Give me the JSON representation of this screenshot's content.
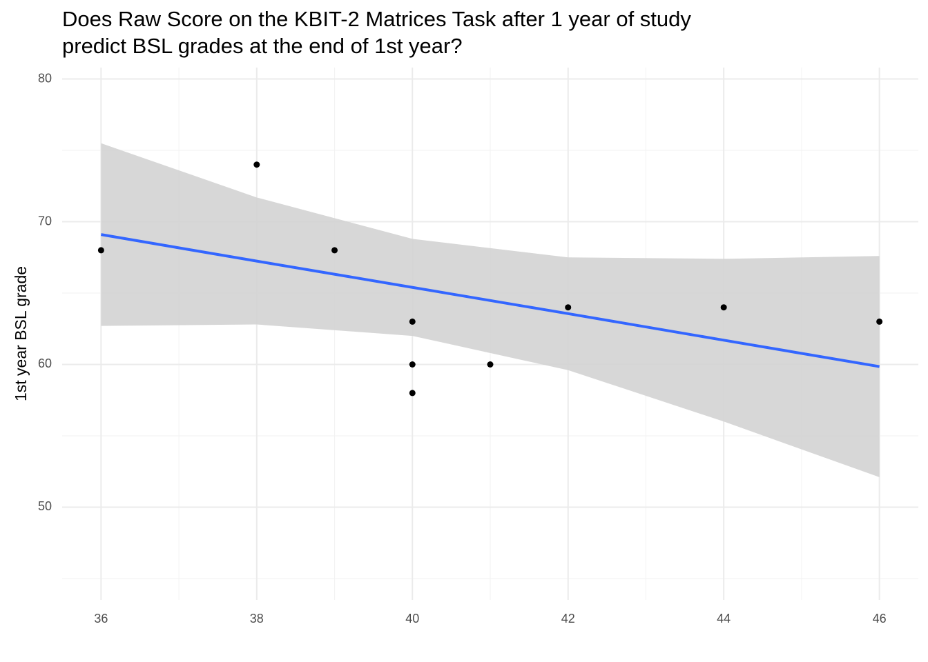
{
  "chart_data": {
    "type": "scatter",
    "title": [
      "Does Raw Score on the KBIT-2 Matrices Task after 1 year of study",
      "predict BSL grades at the end of 1st year?"
    ],
    "y_label": "1st year BSL grade",
    "x": [
      36,
      38,
      39,
      40,
      40,
      40,
      41,
      42,
      44,
      46
    ],
    "series": [
      {
        "color": "#000000",
        "values": [
          68,
          74,
          68,
          63,
          60,
          58,
          60,
          64,
          64,
          63
        ]
      }
    ],
    "smooth": {
      "x": [
        36,
        38,
        40,
        42,
        44,
        46
      ],
      "fit": [
        69.1,
        67.24,
        65.4,
        63.56,
        61.7,
        59.85
      ],
      "lower": [
        62.7,
        62.8,
        62.0,
        59.6,
        56.0,
        52.1
      ],
      "upper": [
        75.5,
        71.7,
        68.8,
        67.5,
        67.4,
        67.6
      ],
      "color": "#3366FF",
      "band_color": "#d3d3d3"
    },
    "xlim": [
      35.5,
      46.5
    ],
    "ylim": [
      43.5,
      80.8
    ],
    "xticks": [
      36,
      38,
      40,
      42,
      44,
      46
    ],
    "yticks": [
      50,
      60,
      70,
      80
    ],
    "grid": true
  }
}
